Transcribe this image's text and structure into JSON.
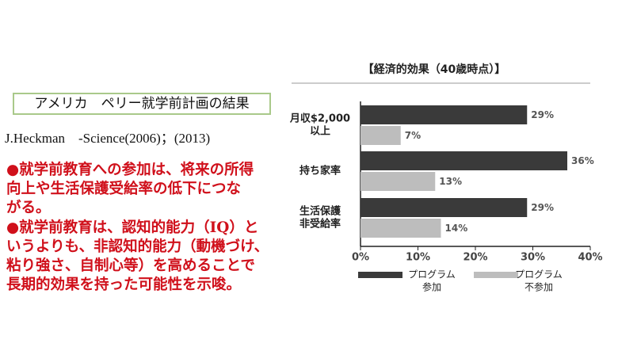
{
  "slide": {
    "box_title": "アメリカ　ペリー就学前計画の結果",
    "citation": "J.Heckman　-Science(2006)；(2013)",
    "bullets": [
      [
        "●就学前教育への参加は、将来の所得",
        "向上や生活保護受給率の低下につな",
        "がる。"
      ],
      [
        "●就学前教育は、認知的能力（IQ）と",
        "いうよりも、非認知的能力（動機づけ、",
        "粘り強さ、自制心等）を高めることで",
        "長期的効果を持った可能性を示唆。"
      ]
    ]
  },
  "chart_data": {
    "type": "bar",
    "orientation": "horizontal",
    "title": "【経済的効果（40歳時点）】",
    "categories": [
      [
        "月収$2,000",
        "以上"
      ],
      [
        "持ち家率"
      ],
      [
        "生活保護",
        "非受給率"
      ]
    ],
    "series": [
      {
        "name": [
          "プログラム",
          "参加"
        ],
        "color": "#3a3a3a",
        "values": [
          29,
          36,
          29
        ],
        "value_labels": [
          "29%",
          "36%",
          "29%"
        ]
      },
      {
        "name": [
          "プログラム",
          "不参加"
        ],
        "color": "#bdbdbd",
        "values": [
          7,
          13,
          14
        ],
        "value_labels": [
          "7%",
          "13%",
          "14%"
        ]
      }
    ],
    "xlim": [
      0,
      40
    ],
    "xticks": [
      {
        "value": 0,
        "label": "0%"
      },
      {
        "value": 10,
        "label": "10%"
      },
      {
        "value": 20,
        "label": "20%"
      },
      {
        "value": 30,
        "label": "30%"
      },
      {
        "value": 40,
        "label": "40%"
      }
    ],
    "legend": "bottom"
  }
}
